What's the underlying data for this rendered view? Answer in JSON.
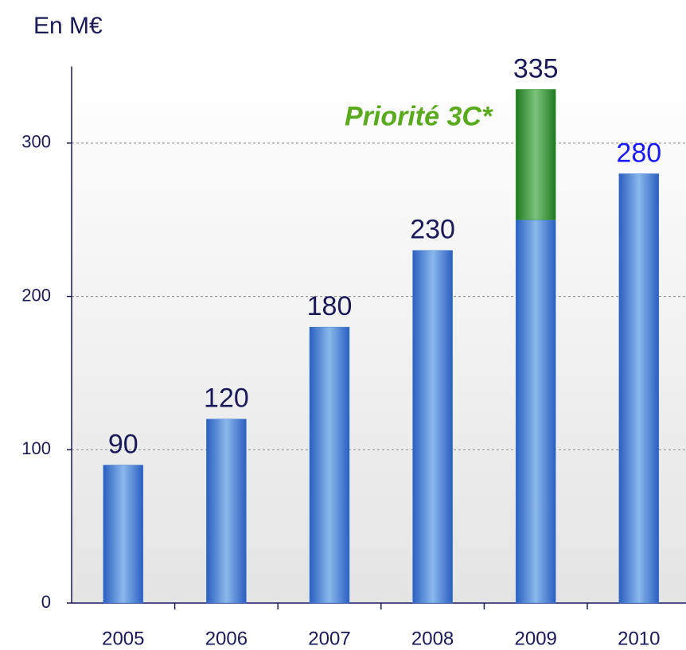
{
  "chart_data": {
    "type": "bar",
    "title": "En M€",
    "categories": [
      "2005",
      "2006",
      "2007",
      "2008",
      "2009",
      "2010"
    ],
    "series": [
      {
        "name": null,
        "color": "#3f7fd6",
        "values": [
          90,
          120,
          180,
          230,
          250,
          280
        ]
      },
      {
        "name": "Priorité 3C*",
        "color": "#3a9a3a",
        "values": [
          null,
          null,
          null,
          null,
          85,
          null
        ]
      }
    ],
    "totals": [
      90,
      120,
      180,
      230,
      335,
      280
    ],
    "total_label_colors": [
      "#1a1a5a",
      "#1a1a5a",
      "#1a1a5a",
      "#1a1a5a",
      "#1a1a5a",
      "#1a1aff"
    ],
    "stacked": true,
    "ylim": [
      0,
      350
    ],
    "yticks": [
      0,
      100,
      200,
      300
    ],
    "grid": true
  }
}
